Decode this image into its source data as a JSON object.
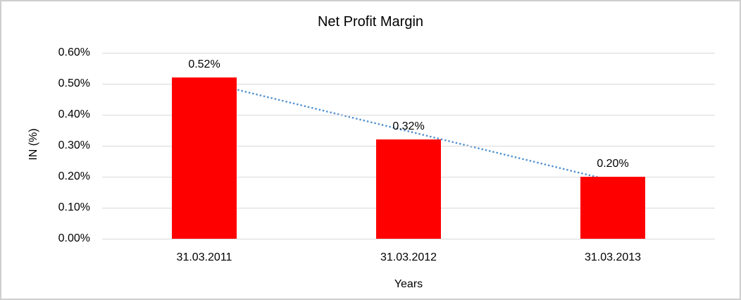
{
  "chart_data": {
    "type": "bar",
    "title": "Net Profit Margin",
    "categories": [
      "31.03.2011",
      "31.03.2012",
      "31.03.2013"
    ],
    "values": [
      0.52,
      0.32,
      0.2
    ],
    "data_labels": [
      "0.52%",
      "0.32%",
      "0.20%"
    ],
    "xlabel": "Years",
    "ylabel": "IN (%)",
    "ylim": [
      0,
      0.6
    ],
    "ytick_step": 0.1,
    "ytick_labels": [
      "0.00%",
      "0.10%",
      "0.20%",
      "0.30%",
      "0.40%",
      "0.50%",
      "0.60%"
    ],
    "grid": true,
    "legend": "none",
    "bar_color": "#ff0000",
    "gridline_color": "#d9d9d9",
    "trendline": {
      "type": "linear",
      "style": "dotted",
      "color": "#4f8fd0",
      "fitted_values": [
        0.5067,
        0.3467,
        0.1867
      ]
    }
  }
}
